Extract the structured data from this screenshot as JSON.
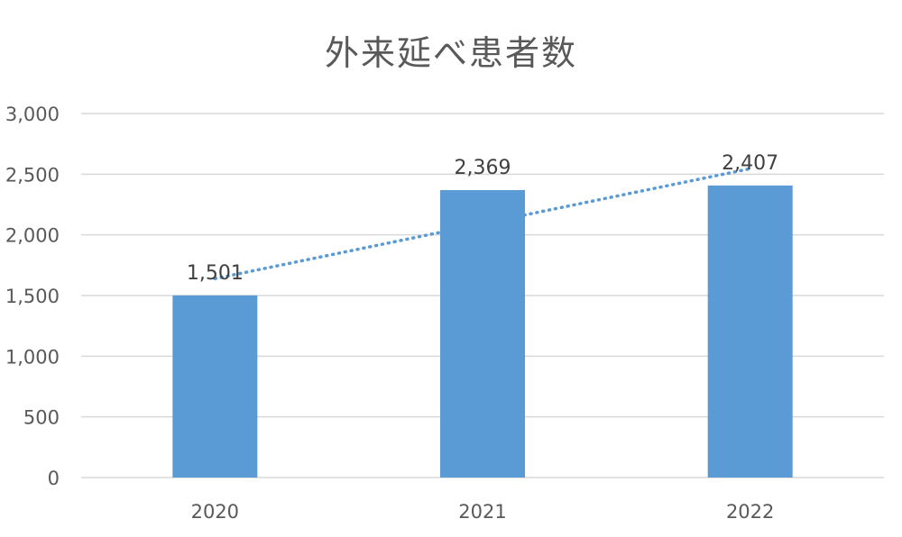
{
  "chart_data": {
    "type": "bar",
    "title": "外来延べ患者数",
    "xlabel": "",
    "ylabel": "",
    "categories": [
      "2020",
      "2021",
      "2022"
    ],
    "values": [
      1501,
      2369,
      2407
    ],
    "data_labels": [
      "1,501",
      "2,369",
      "2,407"
    ],
    "ylim": [
      0,
      3000
    ],
    "yticks": [
      0,
      500,
      1000,
      1500,
      2000,
      2500,
      3000
    ],
    "ytick_labels": [
      "0",
      "500",
      "1,000",
      "1,500",
      "2,000",
      "2,500",
      "3,000"
    ],
    "grid": true,
    "trendline": "linear-dotted",
    "bar_color": "#5b9bd5",
    "trendline_color": "#5b9bd5",
    "grid_color": "#d9d9d9"
  }
}
